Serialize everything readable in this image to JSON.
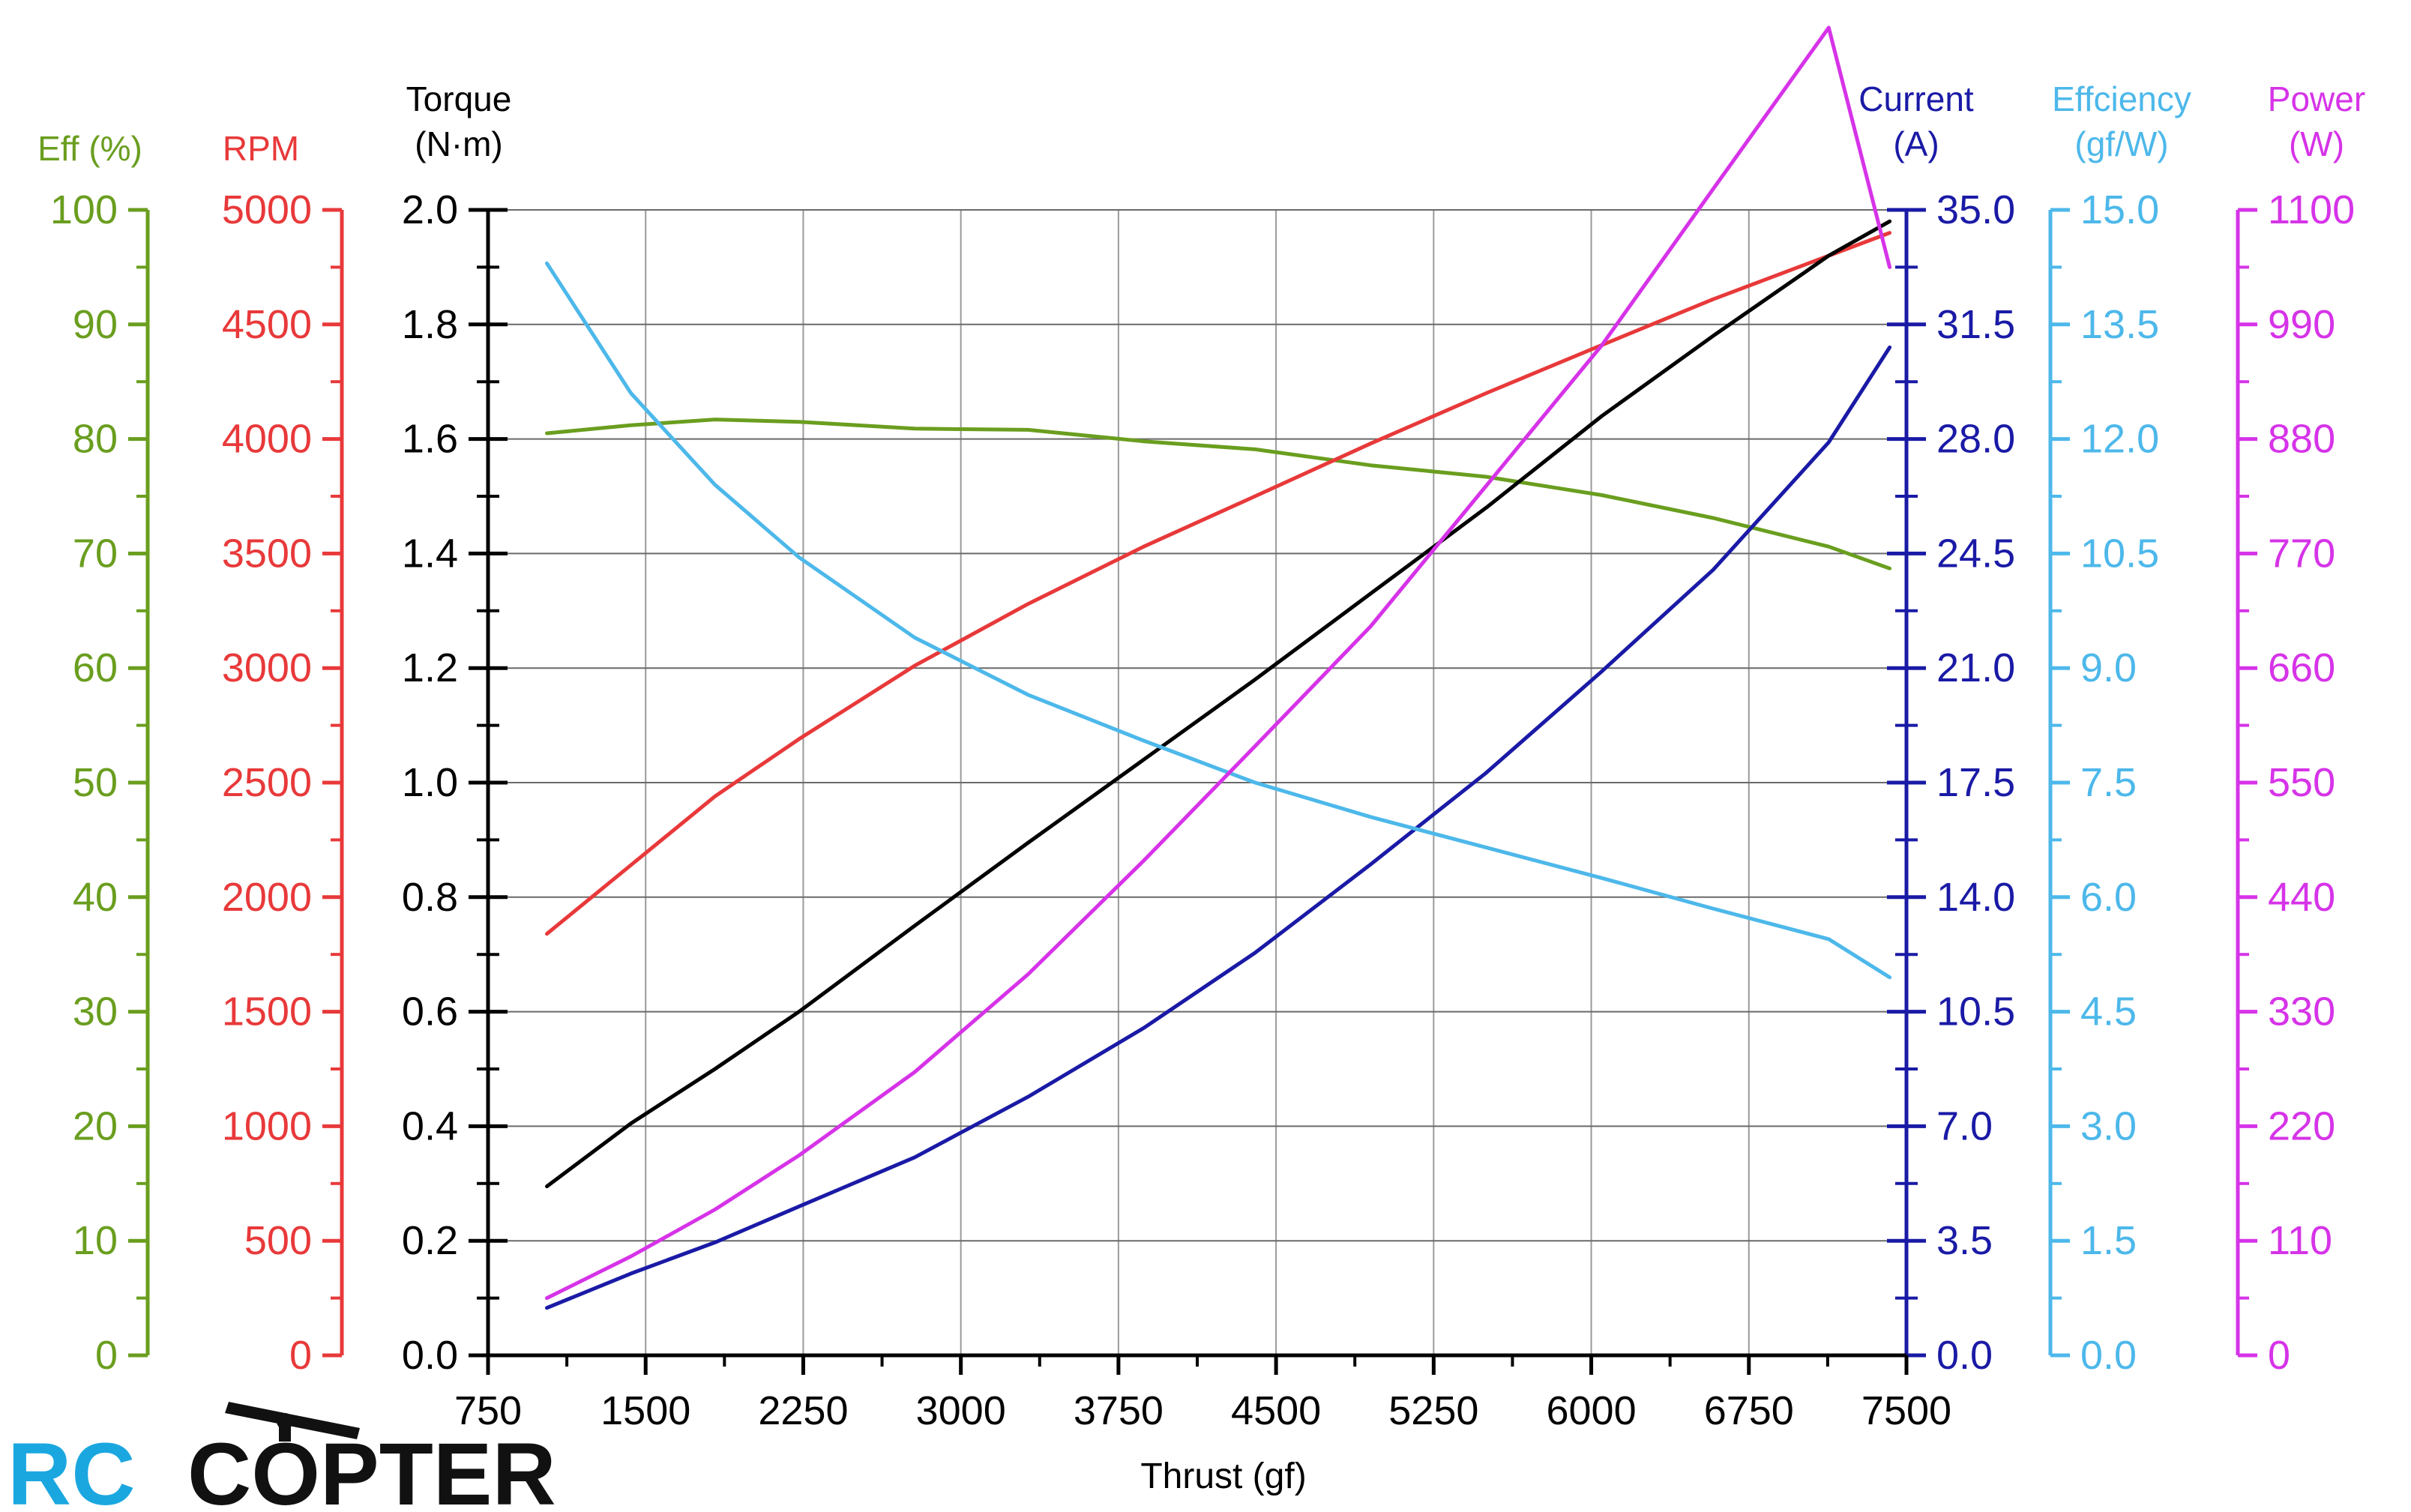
{
  "chart_data": {
    "type": "line",
    "x_axis": {
      "label": "Thrust (gf)",
      "range": [
        750,
        7500
      ],
      "ticks": [
        750,
        1500,
        2250,
        3000,
        3750,
        4500,
        5250,
        6000,
        6750,
        7500
      ]
    },
    "y_axes": [
      {
        "id": "eff_pct",
        "title_lines": [
          "Eff (%)"
        ],
        "color": "#6a9e1f",
        "side": "left",
        "range": [
          0,
          100
        ],
        "ticks": [
          "0",
          "10",
          "20",
          "30",
          "40",
          "50",
          "60",
          "70",
          "80",
          "90",
          "100"
        ]
      },
      {
        "id": "rpm",
        "title_lines": [
          "RPM"
        ],
        "color": "#e8393a",
        "side": "left",
        "range": [
          0,
          5000
        ],
        "ticks": [
          "0",
          "500",
          "1000",
          "1500",
          "2000",
          "2500",
          "3000",
          "3500",
          "4000",
          "4500",
          "5000"
        ]
      },
      {
        "id": "torque",
        "title_lines": [
          "Torque",
          "(N·m)"
        ],
        "color": "#000000",
        "side": "left",
        "range": [
          0,
          2.0
        ],
        "ticks": [
          "0.0",
          "0.2",
          "0.4",
          "0.6",
          "0.8",
          "1.0",
          "1.2",
          "1.4",
          "1.6",
          "1.8",
          "2.0"
        ]
      },
      {
        "id": "current",
        "title_lines": [
          "Current",
          "(A)"
        ],
        "color": "#1a1aa6",
        "side": "right",
        "range": [
          0,
          35
        ],
        "ticks": [
          "0.0",
          "3.5",
          "7.0",
          "10.5",
          "14.0",
          "17.5",
          "21.0",
          "24.5",
          "28.0",
          "31.5",
          "35.0"
        ]
      },
      {
        "id": "eff_gfw",
        "title_lines": [
          "Effciency",
          "(gf/W)"
        ],
        "color": "#4db8ea",
        "side": "right",
        "range": [
          0,
          15
        ],
        "ticks": [
          "0.0",
          "1.5",
          "3.0",
          "4.5",
          "6.0",
          "7.5",
          "9.0",
          "10.5",
          "12.0",
          "13.5",
          "15.0"
        ]
      },
      {
        "id": "power",
        "title_lines": [
          "Power",
          "(W)"
        ],
        "color": "#d633e8",
        "side": "right",
        "range": [
          0,
          1100
        ],
        "ticks": [
          "0",
          "110",
          "220",
          "330",
          "440",
          "550",
          "660",
          "770",
          "880",
          "990",
          "1100"
        ]
      }
    ],
    "grid": true,
    "series": [
      {
        "axis": "eff_pct",
        "color": "#6a9e1f",
        "x": [
          1030,
          1430,
          1830,
          2230,
          2780,
          3320,
          3870,
          4400,
          4950,
          5500,
          6050,
          6580,
          7130,
          7420
        ],
        "y": [
          80.5,
          81.2,
          81.7,
          81.5,
          80.9,
          80.8,
          79.8,
          79.1,
          77.7,
          76.7,
          75.1,
          73.1,
          70.6,
          68.7
        ]
      },
      {
        "axis": "rpm",
        "color": "#e8393a",
        "x": [
          1030,
          1430,
          1830,
          2230,
          2780,
          3320,
          3870,
          4400,
          4950,
          5500,
          6050,
          6580,
          7130,
          7420
        ],
        "y": [
          1840,
          2140,
          2440,
          2690,
          3010,
          3280,
          3530,
          3750,
          3980,
          4200,
          4410,
          4610,
          4800,
          4900
        ]
      },
      {
        "axis": "torque",
        "color": "#000000",
        "x": [
          1030,
          1430,
          1830,
          2230,
          2780,
          3320,
          3870,
          4400,
          4950,
          5500,
          6050,
          6580,
          7130,
          7420
        ],
        "y": [
          0.295,
          0.405,
          0.5,
          0.6,
          0.75,
          0.895,
          1.04,
          1.18,
          1.33,
          1.48,
          1.64,
          1.78,
          1.92,
          1.98
        ]
      },
      {
        "axis": "current",
        "color": "#1a1aa6",
        "x": [
          1030,
          1430,
          1830,
          2230,
          2780,
          3320,
          3870,
          4400,
          4950,
          5500,
          6050,
          6580,
          7130,
          7420
        ],
        "y": [
          1.45,
          2.5,
          3.45,
          4.55,
          6.05,
          7.9,
          10.0,
          12.3,
          15.0,
          17.8,
          20.9,
          24.0,
          27.9,
          30.8
        ]
      },
      {
        "axis": "eff_gfw",
        "color": "#4db8ea",
        "x": [
          1030,
          1430,
          1830,
          2230,
          2780,
          3320,
          3870,
          4400,
          4950,
          5500,
          6050,
          6580,
          7130,
          7420
        ],
        "y": [
          14.3,
          12.6,
          11.4,
          10.45,
          9.4,
          8.65,
          8.05,
          7.5,
          7.05,
          6.65,
          6.25,
          5.85,
          5.45,
          4.95
        ]
      },
      {
        "axis": "power",
        "color": "#d633e8",
        "x": [
          1030,
          1430,
          1830,
          2230,
          2780,
          3320,
          3870,
          4400,
          4950,
          5500,
          6050,
          6580,
          7130,
          7420
        ],
        "y": [
          55,
          95,
          140,
          192,
          272,
          366,
          475,
          585,
          700,
          835,
          970,
          1120,
          1275,
          1045
        ]
      }
    ]
  },
  "logo": {
    "text_left": "RC",
    "text_right": "COPTER",
    "colors": {
      "left": "#1aa7e0",
      "right": "#111111"
    }
  }
}
